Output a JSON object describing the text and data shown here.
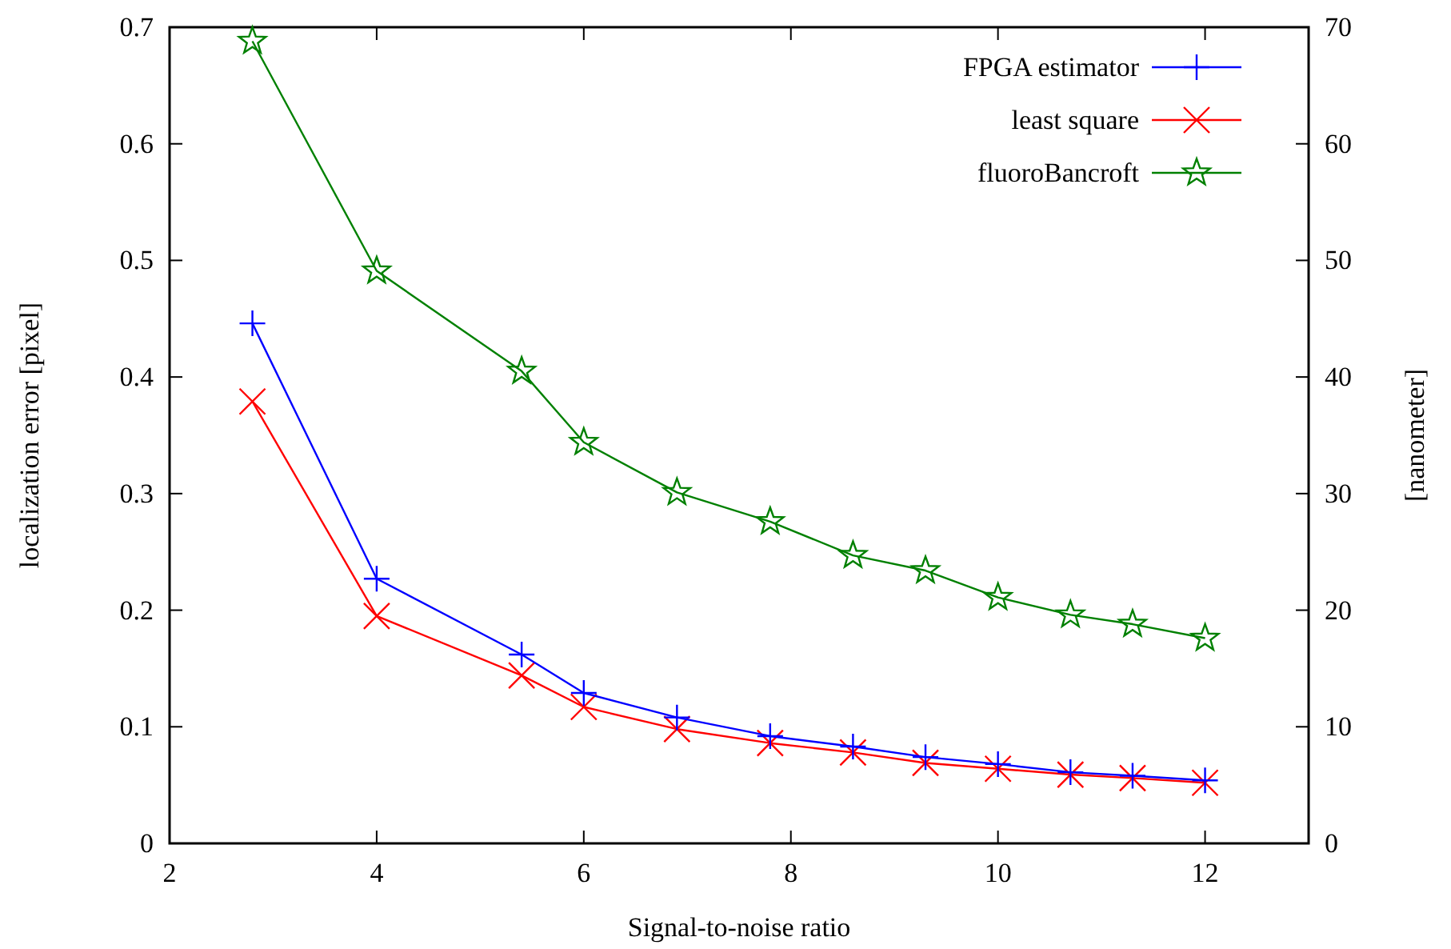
{
  "chart_data": {
    "type": "line",
    "xlabel": "Signal-to-noise ratio",
    "ylabel": "localization error [pixel]",
    "y2label": "[nanometer]",
    "x": [
      2.8,
      4,
      5.4,
      6,
      6.9,
      7.8,
      8.6,
      9.3,
      10,
      10.7,
      11.3,
      12
    ],
    "series": [
      {
        "name": "FPGA estimator",
        "color": "#0000ff",
        "marker": "plus",
        "values": [
          0.446,
          0.227,
          0.162,
          0.129,
          0.108,
          0.092,
          0.083,
          0.074,
          0.068,
          0.061,
          0.058,
          0.054
        ]
      },
      {
        "name": "least square",
        "color": "#ff0000",
        "marker": "cross",
        "values": [
          0.379,
          0.195,
          0.144,
          0.117,
          0.098,
          0.086,
          0.078,
          0.069,
          0.064,
          0.059,
          0.056,
          0.052
        ]
      },
      {
        "name": "fluoroBancroft",
        "color": "#008000",
        "marker": "star",
        "values": [
          0.688,
          0.491,
          0.405,
          0.344,
          0.301,
          0.276,
          0.247,
          0.234,
          0.211,
          0.196,
          0.188,
          0.176
        ]
      }
    ],
    "xlim": [
      2,
      13
    ],
    "xticks": [
      2,
      4,
      6,
      8,
      10,
      12
    ],
    "ylim": [
      0,
      0.7
    ],
    "yticks": [
      0,
      0.1,
      0.2,
      0.3,
      0.4,
      0.5,
      0.6,
      0.7
    ],
    "y2lim": [
      0,
      70
    ],
    "y2ticks": [
      0,
      10,
      20,
      30,
      40,
      50,
      60,
      70
    ],
    "legend": "top right",
    "grid": false
  }
}
